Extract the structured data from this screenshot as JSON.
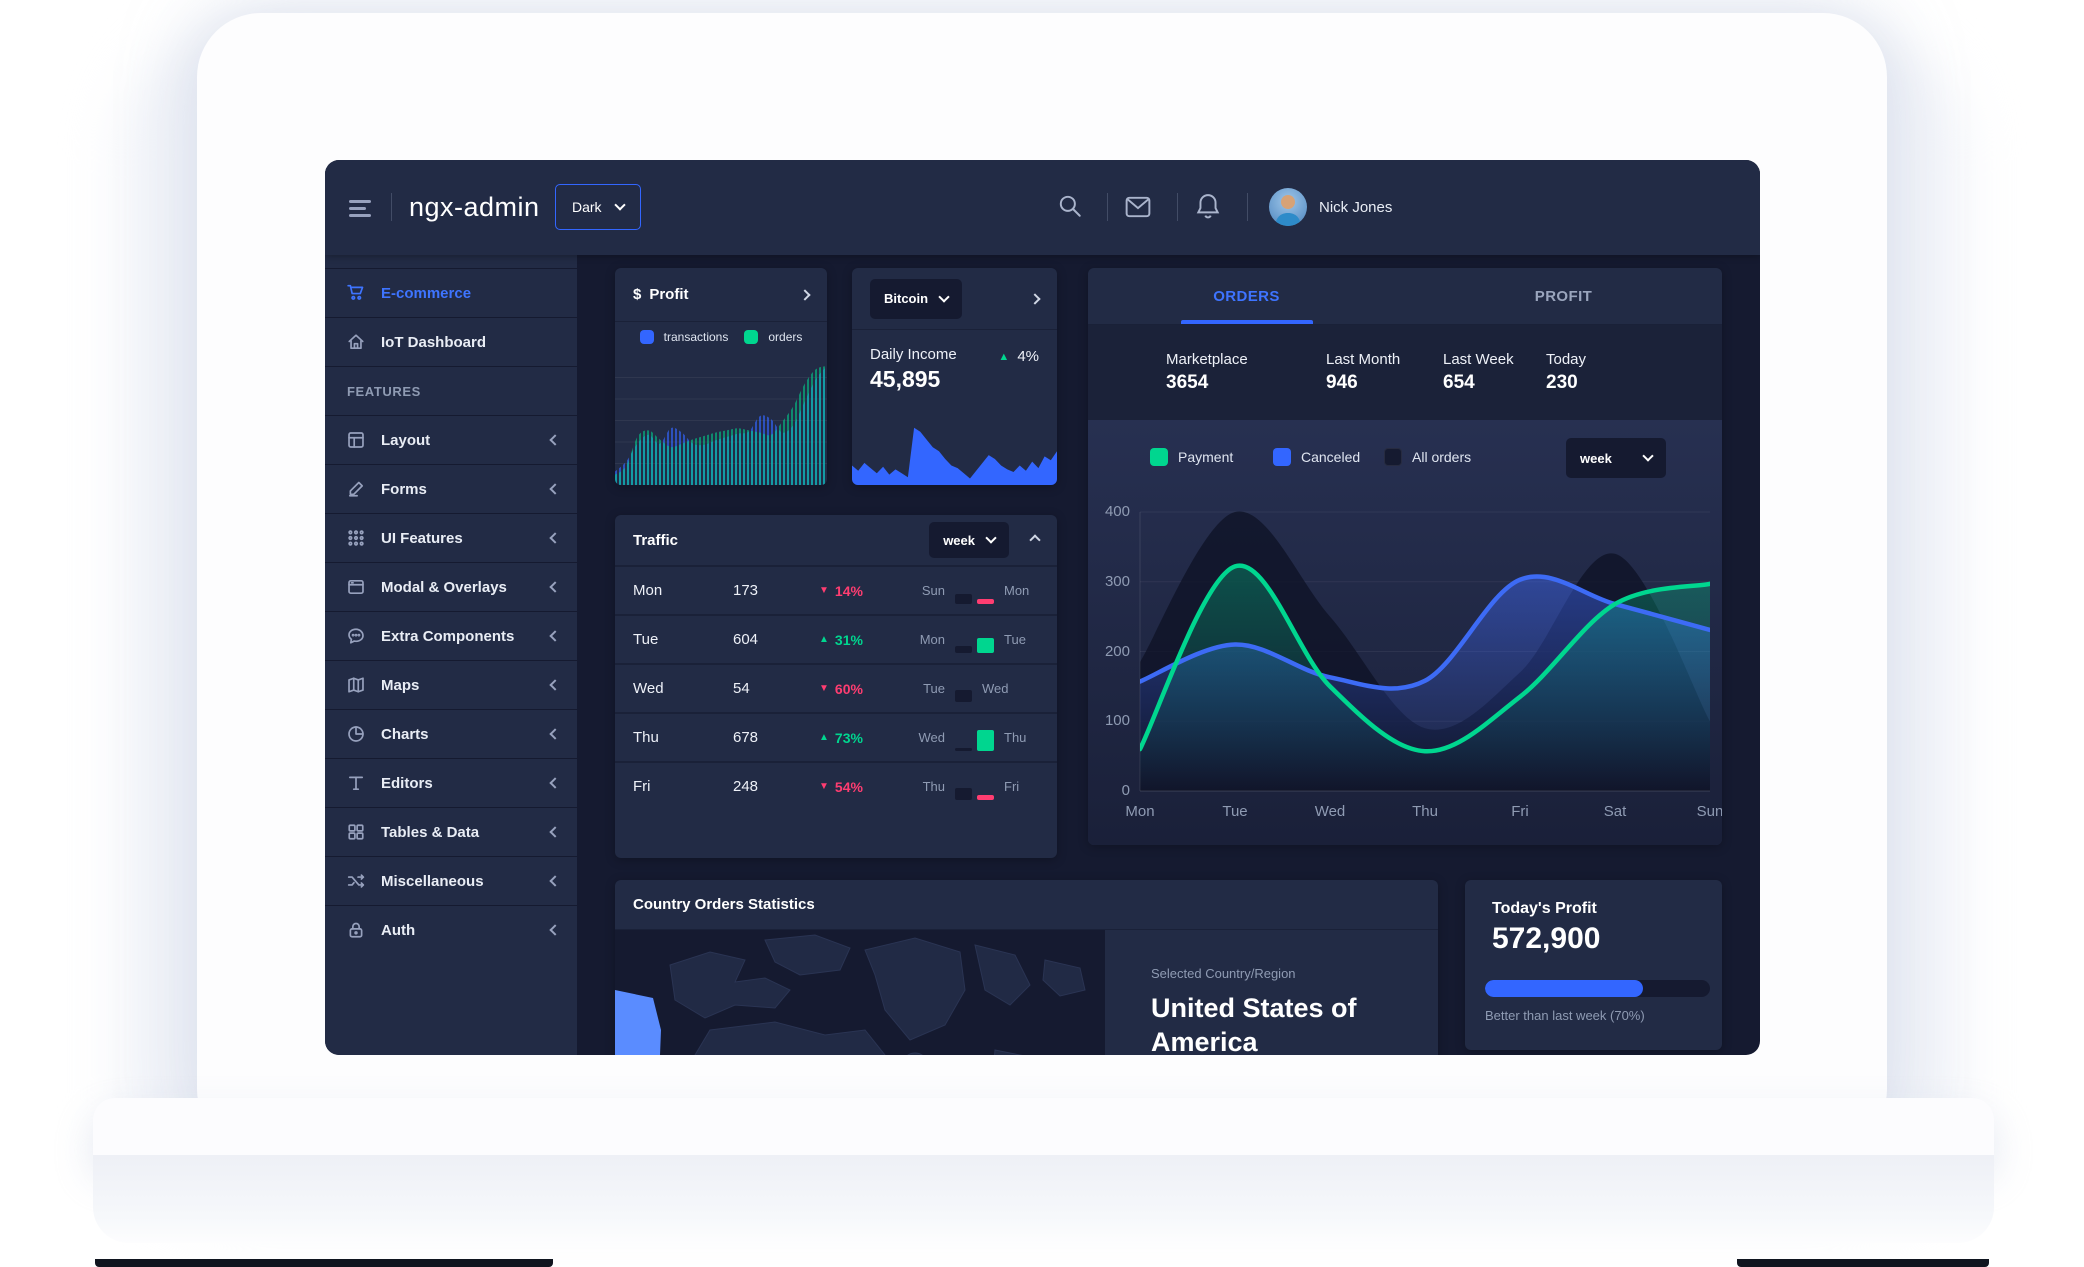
{
  "colors": {
    "primary": "#3366ff",
    "success": "#00d68f",
    "danger": "#ff3d71",
    "bg": "#151a30",
    "card": "#222b45",
    "hint": "#8f9bb3",
    "dark_bar": "#151a30"
  },
  "header": {
    "title": "ngx-admin",
    "theme_select": {
      "value": "Dark"
    },
    "user": {
      "name": "Nick Jones"
    }
  },
  "sidebar": {
    "items_top": [
      {
        "label": "E-commerce"
      },
      {
        "label": "IoT Dashboard"
      }
    ],
    "section_label": "FEATURES",
    "items": [
      {
        "label": "Layout"
      },
      {
        "label": "Forms"
      },
      {
        "label": "UI Features"
      },
      {
        "label": "Modal & Overlays"
      },
      {
        "label": "Extra Components"
      },
      {
        "label": "Maps"
      },
      {
        "label": "Charts"
      },
      {
        "label": "Editors"
      },
      {
        "label": "Tables & Data"
      },
      {
        "label": "Miscellaneous"
      },
      {
        "label": "Auth"
      }
    ]
  },
  "profit_card": {
    "currency": "$",
    "title": "Profit",
    "legend": [
      {
        "label": "transactions",
        "color": "#3366ff"
      },
      {
        "label": "orders",
        "color": "#00d68f"
      }
    ],
    "series": {
      "transactions": [
        5,
        14,
        30,
        38,
        30,
        44,
        40,
        30,
        29,
        33,
        36,
        39,
        41,
        55,
        52,
        40,
        47,
        68,
        88,
        100
      ],
      "orders": [
        2,
        10,
        36,
        42,
        34,
        27,
        30,
        34,
        37,
        40,
        42,
        44,
        42,
        40,
        38,
        50,
        64,
        84,
        97,
        100
      ]
    }
  },
  "bitcoin_card": {
    "selector": "Bitcoin",
    "label": "Daily Income",
    "value": "45,895",
    "delta": "4%",
    "series": [
      30,
      22,
      34,
      26,
      18,
      28,
      16,
      24,
      18,
      12,
      88,
      82,
      70,
      58,
      52,
      40,
      30,
      26,
      18,
      10,
      22,
      34,
      46,
      40,
      30,
      24,
      20,
      30,
      22,
      36,
      26,
      44,
      38,
      52
    ]
  },
  "orders_card": {
    "tabs": [
      {
        "label": "ORDERS",
        "active": true
      },
      {
        "label": "PROFIT",
        "active": false
      }
    ],
    "stats": [
      {
        "label": "Marketplace",
        "value": "3654"
      },
      {
        "label": "Last Month",
        "value": "946"
      },
      {
        "label": "Last Week",
        "value": "654"
      },
      {
        "label": "Today",
        "value": "230"
      }
    ],
    "legend": [
      {
        "label": "Payment",
        "color": "#00d68f"
      },
      {
        "label": "Canceled",
        "color": "#3366ff"
      },
      {
        "label": "All orders",
        "color": "#151a30"
      }
    ],
    "period": "week",
    "chart": {
      "type": "line",
      "y_ticks": [
        "400",
        "300",
        "200",
        "100",
        "0"
      ],
      "y_max": 400,
      "days": [
        "Mon",
        "Tue",
        "Wed",
        "Thu",
        "Fri",
        "Sat",
        "Sun"
      ],
      "series": {
        "all_orders": [
          185,
          400,
          250,
          90,
          170,
          340,
          100
        ],
        "payment": [
          60,
          322,
          150,
          57,
          135,
          268,
          297
        ],
        "canceled": [
          157,
          210,
          163,
          158,
          303,
          268,
          231
        ]
      }
    }
  },
  "traffic_card": {
    "title": "Traffic",
    "period": "week",
    "rows": [
      {
        "day": "Mon",
        "value": "173",
        "delta": "14%",
        "direction": "down",
        "prev_label": "Sun",
        "cur_label": "Mon",
        "prev_h": 10,
        "cur_h": 5,
        "cur_color": "danger"
      },
      {
        "day": "Tue",
        "value": "604",
        "delta": "31%",
        "direction": "up",
        "prev_label": "Mon",
        "cur_label": "Tue",
        "prev_h": 7,
        "cur_h": 15,
        "cur_color": "success"
      },
      {
        "day": "Wed",
        "value": "54",
        "delta": "60%",
        "direction": "down",
        "prev_label": "Tue",
        "cur_label": "Wed",
        "prev_h": 12,
        "cur_h": 0,
        "cur_color": "danger"
      },
      {
        "day": "Thu",
        "value": "678",
        "delta": "73%",
        "direction": "up",
        "prev_label": "Wed",
        "cur_label": "Thu",
        "prev_h": 3,
        "cur_h": 21,
        "cur_color": "success"
      },
      {
        "day": "Fri",
        "value": "248",
        "delta": "54%",
        "direction": "down",
        "prev_label": "Thu",
        "cur_label": "Fri",
        "prev_h": 12,
        "cur_h": 5,
        "cur_color": "danger"
      }
    ]
  },
  "country_card": {
    "title": "Country Orders Statistics",
    "selected_label": "Selected Country/Region",
    "selected_country": "United States of America"
  },
  "today_profit_card": {
    "title": "Today's Profit",
    "value": "572,900",
    "progress_percent": 70,
    "caption": "Better than last week (70%)"
  }
}
